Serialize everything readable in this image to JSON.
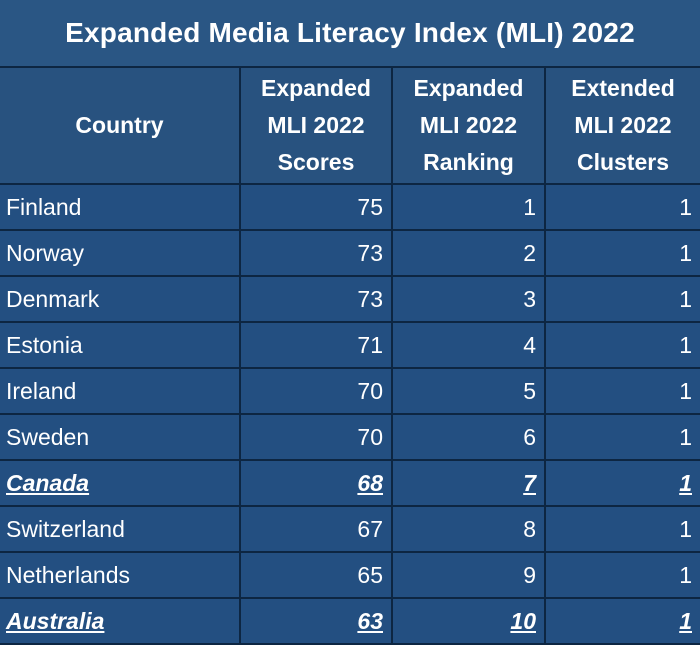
{
  "title": "Expanded Media Literacy Index (MLI) 2022",
  "columns": {
    "country": "Country",
    "scores": [
      "Expanded",
      "MLI 2022",
      "Scores"
    ],
    "ranking": [
      "Expanded",
      "MLI 2022",
      "Ranking"
    ],
    "clusters": [
      "Extended",
      "MLI 2022",
      "Clusters"
    ]
  },
  "rows": [
    {
      "country": "Finland",
      "score": "75",
      "rank": "1",
      "cluster": "1"
    },
    {
      "country": "Norway",
      "score": "73",
      "rank": "2",
      "cluster": "1"
    },
    {
      "country": "Denmark",
      "score": "73",
      "rank": "3",
      "cluster": "1"
    },
    {
      "country": "Estonia",
      "score": "71",
      "rank": "4",
      "cluster": "1"
    },
    {
      "country": "Ireland",
      "score": "70",
      "rank": "5",
      "cluster": "1"
    },
    {
      "country": "Sweden",
      "score": "70",
      "rank": "6",
      "cluster": "1"
    },
    {
      "country": "Canada",
      "score": "68",
      "rank": "7",
      "cluster": "1"
    },
    {
      "country": "Switzerland",
      "score": "67",
      "rank": "8",
      "cluster": "1"
    },
    {
      "country": "Netherlands",
      "score": "65",
      "rank": "9",
      "cluster": "1"
    },
    {
      "country": "Australia",
      "score": "63",
      "rank": "10",
      "cluster": "1"
    }
  ],
  "colors": {
    "background": "#234f81",
    "header": "#28527f",
    "grid": "#0d2642",
    "text": "#ffffff"
  }
}
